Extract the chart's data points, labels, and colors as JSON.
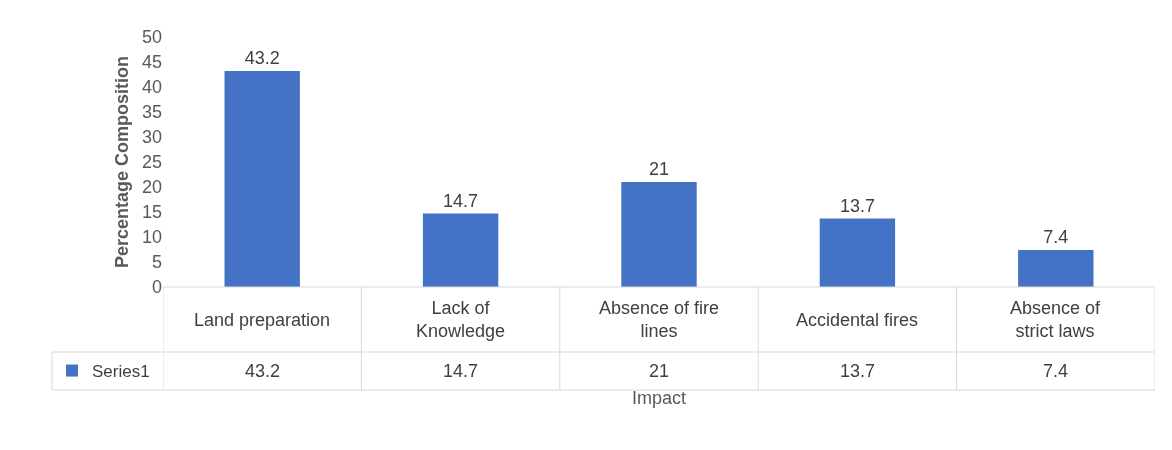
{
  "chart_data": {
    "type": "bar",
    "xlabel": "Impact",
    "ylabel": "Percentage Composition",
    "categories": [
      "Land preparation",
      "Lack of Knowledge",
      "Absence of fire lines",
      "Accidental fires",
      "Absence of strict laws"
    ],
    "series": [
      {
        "name": "Series1",
        "color": "#4472c4",
        "values": [
          43.2,
          14.7,
          21,
          13.7,
          7.4
        ],
        "value_labels": [
          "43.2",
          "14.7",
          "21",
          "13.7",
          "7.4"
        ]
      }
    ],
    "ylim": [
      0,
      50
    ],
    "yticks": [
      0,
      5,
      10,
      15,
      20,
      25,
      30,
      35,
      40,
      45,
      50
    ],
    "data_labels": true,
    "legend": "bottom left"
  }
}
